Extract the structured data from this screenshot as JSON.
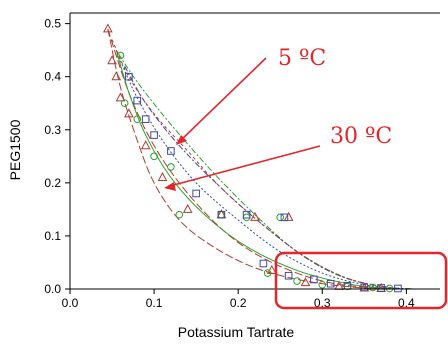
{
  "chart_data": {
    "type": "scatter",
    "xlabel": "Potassium Tartrate",
    "ylabel": "PEG1500",
    "xlim": [
      0.0,
      0.44
    ],
    "ylim": [
      0.0,
      0.52
    ],
    "x_ticks": [
      "0.0",
      "0.1",
      "0.2",
      "0.3",
      "0.4"
    ],
    "y_ticks": [
      "0.0",
      "0.1",
      "0.2",
      "0.3",
      "0.4",
      "0.5"
    ],
    "x_tick_values": [
      0.0,
      0.1,
      0.2,
      0.3,
      0.4
    ],
    "y_tick_values": [
      0.0,
      0.1,
      0.2,
      0.3,
      0.4,
      0.5
    ],
    "grid": false,
    "annotations": [
      {
        "text": "5 ºC",
        "color": "#e3262b",
        "arrow_to": [
          0.12,
          0.29
        ]
      },
      {
        "text": "30 ºC",
        "color": "#e3262b",
        "arrow_to": [
          0.104,
          0.2
        ]
      }
    ],
    "highlight_box": {
      "x_range": [
        0.24,
        0.44
      ],
      "y_range": [
        -0.01,
        0.065
      ],
      "color": "#e3262b"
    },
    "series": [
      {
        "marker": "triangle",
        "color": "#b03a2e",
        "points": [
          [
            0.045,
            0.49
          ],
          [
            0.05,
            0.43
          ],
          [
            0.055,
            0.4
          ],
          [
            0.06,
            0.36
          ],
          [
            0.07,
            0.33
          ],
          [
            0.09,
            0.27
          ],
          [
            0.11,
            0.21
          ],
          [
            0.14,
            0.15
          ],
          [
            0.18,
            0.14
          ],
          [
            0.22,
            0.135
          ],
          [
            0.26,
            0.135
          ],
          [
            0.24,
            0.035
          ],
          [
            0.28,
            0.012
          ],
          [
            0.32,
            0.005
          ],
          [
            0.35,
            0.002
          ],
          [
            0.37,
            0.001
          ]
        ]
      },
      {
        "marker": "circle",
        "color": "#2ca02c",
        "points": [
          [
            0.06,
            0.44
          ],
          [
            0.065,
            0.35
          ],
          [
            0.08,
            0.32
          ],
          [
            0.1,
            0.25
          ],
          [
            0.12,
            0.23
          ],
          [
            0.13,
            0.14
          ],
          [
            0.18,
            0.14
          ],
          [
            0.21,
            0.135
          ],
          [
            0.25,
            0.135
          ],
          [
            0.235,
            0.03
          ],
          [
            0.27,
            0.015
          ],
          [
            0.3,
            0.008
          ],
          [
            0.33,
            0.005
          ],
          [
            0.36,
            0.003
          ],
          [
            0.38,
            0.001
          ]
        ]
      },
      {
        "marker": "square",
        "color": "#3b4aa8",
        "points": [
          [
            0.07,
            0.4
          ],
          [
            0.08,
            0.355
          ],
          [
            0.09,
            0.32
          ],
          [
            0.1,
            0.29
          ],
          [
            0.12,
            0.26
          ],
          [
            0.15,
            0.18
          ],
          [
            0.18,
            0.14
          ],
          [
            0.21,
            0.14
          ],
          [
            0.255,
            0.135
          ],
          [
            0.23,
            0.048
          ],
          [
            0.26,
            0.025
          ],
          [
            0.29,
            0.018
          ],
          [
            0.31,
            0.01
          ],
          [
            0.33,
            0.006
          ],
          [
            0.35,
            0.003
          ],
          [
            0.37,
            0.002
          ],
          [
            0.39,
            0.001
          ]
        ]
      }
    ],
    "curves": [
      {
        "color": "#b03a2e",
        "dash": "8 3",
        "points": [
          [
            0.045,
            0.49
          ],
          [
            0.06,
            0.38
          ],
          [
            0.08,
            0.28
          ],
          [
            0.1,
            0.2
          ],
          [
            0.13,
            0.13
          ],
          [
            0.17,
            0.08
          ],
          [
            0.22,
            0.04
          ],
          [
            0.28,
            0.015
          ],
          [
            0.34,
            0.003
          ],
          [
            0.38,
            0.0
          ]
        ]
      },
      {
        "color": "#b03a2e",
        "dash": "8 3",
        "points": [
          [
            0.045,
            0.49
          ],
          [
            0.07,
            0.37
          ],
          [
            0.1,
            0.27
          ],
          [
            0.14,
            0.18
          ],
          [
            0.19,
            0.1
          ],
          [
            0.24,
            0.05
          ],
          [
            0.3,
            0.015
          ],
          [
            0.36,
            0.002
          ],
          [
            0.4,
            0.0
          ]
        ]
      },
      {
        "color": "#2ca02c",
        "dash": "none",
        "points": [
          [
            0.055,
            0.45
          ],
          [
            0.07,
            0.37
          ],
          [
            0.09,
            0.29
          ],
          [
            0.12,
            0.21
          ],
          [
            0.16,
            0.14
          ],
          [
            0.21,
            0.08
          ],
          [
            0.27,
            0.035
          ],
          [
            0.33,
            0.01
          ],
          [
            0.38,
            0.0
          ]
        ]
      },
      {
        "color": "#2ca02c",
        "dash": "2 2 6 2",
        "points": [
          [
            0.055,
            0.45
          ],
          [
            0.08,
            0.39
          ],
          [
            0.12,
            0.31
          ],
          [
            0.17,
            0.22
          ],
          [
            0.22,
            0.14
          ],
          [
            0.27,
            0.07
          ],
          [
            0.32,
            0.025
          ],
          [
            0.37,
            0.005
          ],
          [
            0.41,
            0.0
          ]
        ]
      },
      {
        "color": "#3b4aa8",
        "dash": "6 2 2 2",
        "points": [
          [
            0.065,
            0.42
          ],
          [
            0.09,
            0.35
          ],
          [
            0.13,
            0.27
          ],
          [
            0.18,
            0.19
          ],
          [
            0.23,
            0.12
          ],
          [
            0.28,
            0.06
          ],
          [
            0.33,
            0.02
          ],
          [
            0.38,
            0.003
          ],
          [
            0.41,
            0.0
          ]
        ]
      },
      {
        "color": "#3b4aa8",
        "dash": "2 2",
        "points": [
          [
            0.06,
            0.43
          ],
          [
            0.08,
            0.36
          ],
          [
            0.11,
            0.28
          ],
          [
            0.15,
            0.2
          ],
          [
            0.2,
            0.13
          ],
          [
            0.25,
            0.07
          ],
          [
            0.3,
            0.03
          ],
          [
            0.35,
            0.008
          ],
          [
            0.39,
            0.0
          ]
        ]
      },
      {
        "color": "#b03a2e",
        "dash": "3 3",
        "points": [
          [
            0.05,
            0.47
          ],
          [
            0.07,
            0.4
          ],
          [
            0.1,
            0.33
          ],
          [
            0.14,
            0.26
          ],
          [
            0.18,
            0.19
          ],
          [
            0.23,
            0.12
          ],
          [
            0.28,
            0.06
          ],
          [
            0.33,
            0.02
          ],
          [
            0.38,
            0.002
          ],
          [
            0.41,
            0.0
          ]
        ]
      }
    ]
  }
}
